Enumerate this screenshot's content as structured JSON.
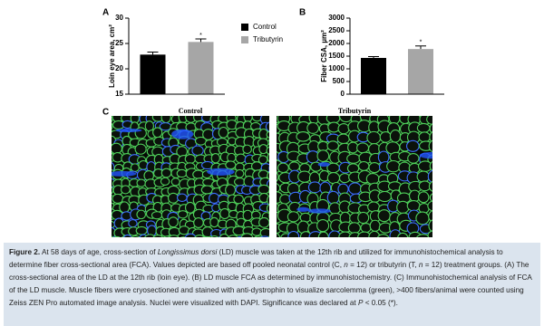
{
  "chart_data": [
    {
      "type": "bar",
      "panel_label": "A",
      "ylabel": "Loin eye area, cm²",
      "categories": [
        "Control",
        "Tributyrin"
      ],
      "values": [
        22.8,
        25.3
      ],
      "errors": [
        0.5,
        0.6
      ],
      "colors": [
        "#000000",
        "#a6a6a6"
      ],
      "ylim": [
        15,
        30
      ],
      "yticks": [
        15,
        20,
        25,
        30
      ],
      "significance_labels": [
        null,
        "*"
      ],
      "legend": "right"
    },
    {
      "type": "bar",
      "panel_label": "B",
      "ylabel": "Fiber CSA, µm²",
      "categories": [
        "Control",
        "Tributyrin"
      ],
      "values": [
        1430,
        1780
      ],
      "errors": [
        50,
        120
      ],
      "colors": [
        "#000000",
        "#a6a6a6"
      ],
      "ylim": [
        0,
        3000
      ],
      "yticks": [
        0,
        500,
        1000,
        1500,
        2000,
        2500,
        3000
      ],
      "significance_labels": [
        null,
        "*"
      ]
    }
  ],
  "panel_c": {
    "label": "C",
    "images": [
      "Control",
      "Tributyrin"
    ]
  },
  "caption": [
    {
      "text": "Figure 2.",
      "bold": true
    },
    {
      "text": " At 58 days of age, cross-section of "
    },
    {
      "text": "Longissimus dorsi",
      "italic": true
    },
    {
      "text": " (LD) muscle was taken at the 12th rib and utilized for immunohistochemical analysis to determine fiber cross-sectional area (FCA). Values depicted are based off pooled neonatal control (C, "
    },
    {
      "text": "n",
      "italic": true
    },
    {
      "text": " = 12) or tributyrin (T, "
    },
    {
      "text": "n",
      "italic": true
    },
    {
      "text": " = 12) treatment groups. (A) The cross-sectional area of the LD at the 12th rib (loin eye). (B) LD muscle FCA as determined by immunohistochemistry. (C) Immunohistochemical analysis of FCA of the LD muscle. Muscle fibers were cryosectioned and stained with anti-dystrophin to visualize sarcolemma (green), >400 fibers/animal were counted using Zeiss ZEN Pro automated image analysis. Nuclei were visualized with DAPI. Significance was declared at "
    },
    {
      "text": "P",
      "italic": true
    },
    {
      "text": " < 0.05 (*)."
    }
  ]
}
